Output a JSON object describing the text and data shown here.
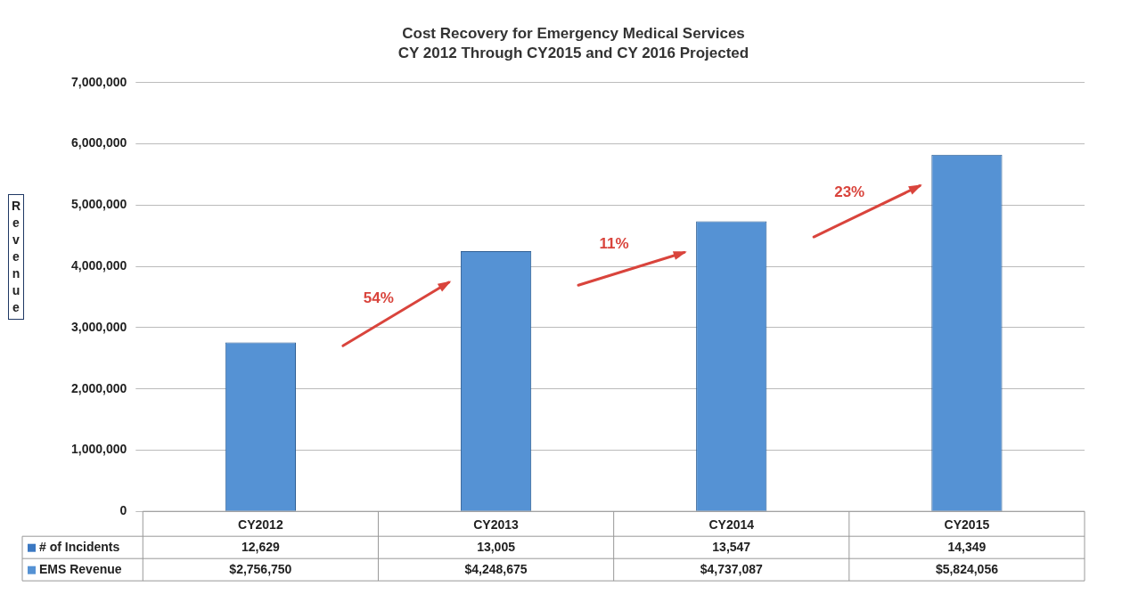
{
  "chart_data": {
    "type": "bar",
    "title": "Cost Recovery for Emergency Medical Services",
    "subtitle": "CY 2012 Through CY2015 and CY 2016 Projected",
    "ylabel": "Revenue",
    "categories": [
      "CY2012",
      "CY2013",
      "CY2014",
      "CY2015"
    ],
    "series": [
      {
        "name": "# of Incidents",
        "color": "#3b78c2",
        "values": [
          12629,
          13005,
          13547,
          14349
        ],
        "value_labels": [
          "12,629",
          "13,005",
          "13,547",
          "14,349"
        ]
      },
      {
        "name": "EMS Revenue",
        "color": "#5592d4",
        "values": [
          2756750,
          4248675,
          4737087,
          5824056
        ],
        "value_labels": [
          "$2,756,750",
          "$4,248,675",
          "$4,737,087",
          "$5,824,056"
        ]
      }
    ],
    "ylim": [
      0,
      7000000
    ],
    "yticks": [
      0,
      {
        "value": 1000000,
        "label": "1,000,000"
      },
      {
        "value": 2000000,
        "label": "2,000,000"
      },
      {
        "value": 3000000,
        "label": "3,000,000"
      },
      {
        "value": 4000000,
        "label": "4,000,000"
      },
      {
        "value": 5000000,
        "label": "5,000,000"
      },
      {
        "value": 6000000,
        "label": "6,000,000"
      },
      {
        "value": 7000000,
        "label": "7,000,000"
      }
    ],
    "grid": "y",
    "legend": "bottom",
    "annotations": [
      "54%",
      "11%",
      "23%"
    ]
  }
}
